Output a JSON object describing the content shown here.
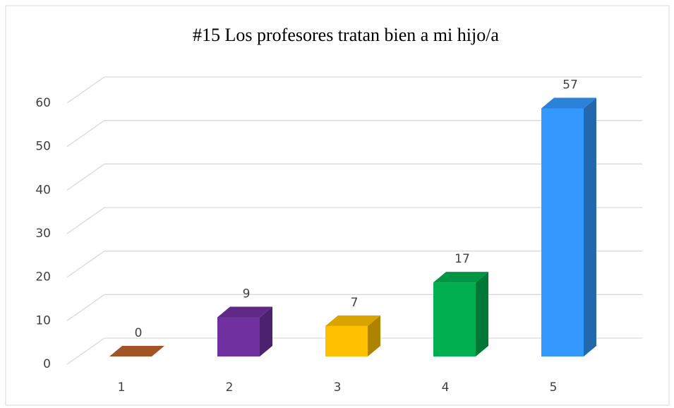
{
  "chart_data": {
    "type": "bar3d",
    "title": "#15 Los profesores tratan bien a mi hijo/a",
    "categories": [
      "1",
      "2",
      "3",
      "4",
      "5"
    ],
    "values": [
      0,
      9,
      7,
      17,
      57
    ],
    "colors": [
      "#c0622b",
      "#7030a0",
      "#ffc000",
      "#00b050",
      "#3399ff"
    ],
    "ylim": [
      0,
      60
    ],
    "yticks": [
      0,
      10,
      20,
      30,
      40,
      50,
      60
    ],
    "grid": true
  }
}
